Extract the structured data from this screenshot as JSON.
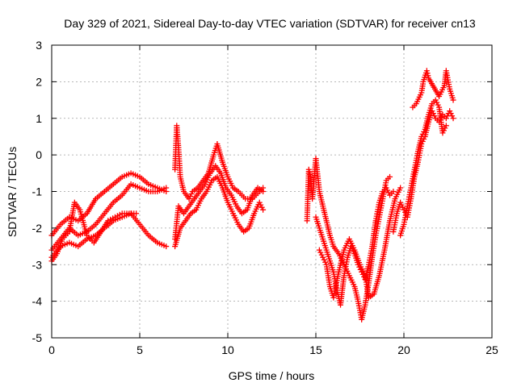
{
  "chart_data": {
    "type": "scatter",
    "title": "Day 329 of 2021, Sidereal Day-to-day VTEC variation (SDTVAR) for receiver cn13",
    "xlabel": "GPS time / hours",
    "ylabel": "SDTVAR / TECUs",
    "xlim": [
      0,
      25
    ],
    "ylim": [
      -5,
      3
    ],
    "xticks": [
      "0",
      "5",
      "10",
      "15",
      "20",
      "25"
    ],
    "yticks": [
      "-5",
      "-4",
      "-3",
      "-2",
      "-1",
      "0",
      "1",
      "2",
      "3"
    ],
    "grid": true,
    "marker": "plus",
    "color": "#ff0000",
    "series": [
      {
        "points": [
          [
            0,
            -2.2
          ],
          [
            0.5,
            -1.9
          ],
          [
            1.0,
            -1.7
          ],
          [
            1.5,
            -1.8
          ],
          [
            2.0,
            -1.6
          ],
          [
            2.5,
            -1.2
          ],
          [
            3.0,
            -1.0
          ],
          [
            3.5,
            -0.8
          ],
          [
            4.0,
            -0.6
          ],
          [
            4.5,
            -0.5
          ],
          [
            5.0,
            -0.6
          ],
          [
            5.5,
            -0.8
          ],
          [
            6.0,
            -0.9
          ],
          [
            6.5,
            -1.0
          ]
        ]
      },
      {
        "points": [
          [
            0,
            -2.6
          ],
          [
            0.5,
            -2.3
          ],
          [
            1.0,
            -2.0
          ],
          [
            1.5,
            -2.2
          ],
          [
            2.0,
            -2.1
          ],
          [
            2.5,
            -1.9
          ],
          [
            3.0,
            -1.6
          ],
          [
            3.5,
            -1.3
          ],
          [
            4.0,
            -1.1
          ],
          [
            4.5,
            -0.8
          ],
          [
            5.0,
            -0.9
          ],
          [
            5.5,
            -1.0
          ],
          [
            6.0,
            -1.0
          ],
          [
            6.5,
            -0.9
          ]
        ]
      },
      {
        "points": [
          [
            0,
            -2.8
          ],
          [
            0.5,
            -2.5
          ],
          [
            1.0,
            -2.4
          ],
          [
            1.5,
            -2.5
          ],
          [
            2.0,
            -2.3
          ],
          [
            2.5,
            -2.2
          ],
          [
            3.0,
            -2.0
          ],
          [
            3.5,
            -1.8
          ],
          [
            4.0,
            -1.7
          ],
          [
            4.5,
            -1.6
          ],
          [
            5.0,
            -1.9
          ],
          [
            5.5,
            -2.2
          ],
          [
            6.0,
            -2.4
          ],
          [
            6.5,
            -2.5
          ]
        ]
      },
      {
        "points": [
          [
            0,
            -2.9
          ],
          [
            0.3,
            -2.7
          ],
          [
            0.6,
            -2.3
          ],
          [
            1.0,
            -2.1
          ],
          [
            1.3,
            -1.3
          ],
          [
            1.6,
            -1.5
          ],
          [
            2.0,
            -2.2
          ],
          [
            2.4,
            -2.4
          ],
          [
            2.8,
            -2.1
          ],
          [
            3.2,
            -1.8
          ],
          [
            3.6,
            -1.7
          ],
          [
            4.0,
            -1.6
          ],
          [
            4.4,
            -1.6
          ],
          [
            4.8,
            -1.6
          ]
        ]
      },
      {
        "points": [
          [
            7.0,
            -0.4
          ],
          [
            7.1,
            0.8
          ],
          [
            7.2,
            0.2
          ],
          [
            7.3,
            -0.6
          ],
          [
            7.5,
            -1.0
          ],
          [
            7.8,
            -1.2
          ],
          [
            8.0,
            -1.0
          ],
          [
            8.3,
            -0.9
          ],
          [
            8.6,
            -0.7
          ],
          [
            8.9,
            -0.5
          ],
          [
            9.2,
            0.0
          ],
          [
            9.4,
            0.3
          ],
          [
            9.7,
            -0.2
          ],
          [
            10.0,
            -0.6
          ],
          [
            10.3,
            -0.9
          ],
          [
            10.6,
            -1.0
          ],
          [
            11.0,
            -1.2
          ],
          [
            11.4,
            -1.2
          ],
          [
            11.8,
            -1.0
          ],
          [
            12.0,
            -0.9
          ]
        ]
      },
      {
        "points": [
          [
            7.0,
            -2.3
          ],
          [
            7.2,
            -1.4
          ],
          [
            7.5,
            -1.6
          ],
          [
            7.8,
            -1.4
          ],
          [
            8.1,
            -1.2
          ],
          [
            8.4,
            -1.0
          ],
          [
            8.7,
            -0.8
          ],
          [
            9.0,
            -0.5
          ],
          [
            9.3,
            -0.3
          ],
          [
            9.6,
            -0.5
          ],
          [
            9.9,
            -0.9
          ],
          [
            10.2,
            -1.1
          ],
          [
            10.5,
            -1.4
          ],
          [
            10.8,
            -1.6
          ],
          [
            11.1,
            -1.5
          ],
          [
            11.4,
            -1.1
          ],
          [
            11.7,
            -0.9
          ],
          [
            12.0,
            -1.0
          ]
        ]
      },
      {
        "points": [
          [
            7.0,
            -2.5
          ],
          [
            7.3,
            -2.0
          ],
          [
            7.6,
            -1.8
          ],
          [
            7.9,
            -1.6
          ],
          [
            8.2,
            -1.5
          ],
          [
            8.5,
            -1.2
          ],
          [
            8.8,
            -1.0
          ],
          [
            9.1,
            -0.7
          ],
          [
            9.4,
            -0.6
          ],
          [
            9.7,
            -0.9
          ],
          [
            10.0,
            -1.3
          ],
          [
            10.3,
            -1.6
          ],
          [
            10.6,
            -1.9
          ],
          [
            10.9,
            -2.1
          ],
          [
            11.2,
            -2.0
          ],
          [
            11.5,
            -1.6
          ],
          [
            11.8,
            -1.3
          ],
          [
            12.0,
            -1.5
          ]
        ]
      },
      {
        "points": [
          [
            14.5,
            -1.8
          ],
          [
            14.6,
            -0.4
          ],
          [
            14.7,
            -0.6
          ],
          [
            14.8,
            -1.2
          ],
          [
            15.0,
            -0.1
          ],
          [
            15.2,
            -1.0
          ],
          [
            15.4,
            -1.4
          ],
          [
            15.6,
            -1.8
          ],
          [
            15.8,
            -2.2
          ],
          [
            16.0,
            -2.5
          ],
          [
            16.3,
            -2.7
          ],
          [
            16.6,
            -3.0
          ],
          [
            16.9,
            -3.3
          ],
          [
            17.2,
            -3.6
          ],
          [
            17.4,
            -4.0
          ],
          [
            17.6,
            -4.5
          ],
          [
            17.8,
            -4.1
          ],
          [
            18.0,
            -3.5
          ],
          [
            18.2,
            -2.8
          ],
          [
            18.4,
            -2.2
          ],
          [
            18.6,
            -1.7
          ],
          [
            18.8,
            -1.2
          ],
          [
            19.0,
            -0.7
          ],
          [
            19.2,
            -0.6
          ]
        ]
      },
      {
        "points": [
          [
            15.0,
            -1.7
          ],
          [
            15.2,
            -2.0
          ],
          [
            15.4,
            -2.3
          ],
          [
            15.6,
            -2.6
          ],
          [
            15.8,
            -2.9
          ],
          [
            16.0,
            -3.2
          ],
          [
            16.2,
            -3.7
          ],
          [
            16.4,
            -4.1
          ],
          [
            16.6,
            -3.3
          ],
          [
            16.8,
            -2.8
          ],
          [
            17.0,
            -2.5
          ],
          [
            17.2,
            -2.7
          ],
          [
            17.4,
            -3.0
          ],
          [
            17.6,
            -3.2
          ],
          [
            17.8,
            -3.4
          ],
          [
            18.0,
            -3.0
          ],
          [
            18.2,
            -2.5
          ],
          [
            18.4,
            -1.8
          ],
          [
            18.6,
            -1.3
          ],
          [
            18.8,
            -1.0
          ],
          [
            19.0,
            -0.9
          ],
          [
            19.2,
            -1.1
          ],
          [
            19.4,
            -1.0
          ]
        ]
      },
      {
        "points": [
          [
            15.2,
            -2.6
          ],
          [
            15.4,
            -2.8
          ],
          [
            15.6,
            -3.0
          ],
          [
            15.8,
            -3.6
          ],
          [
            16.0,
            -3.9
          ],
          [
            16.3,
            -3.2
          ],
          [
            16.6,
            -2.6
          ],
          [
            16.9,
            -2.3
          ],
          [
            17.2,
            -2.6
          ],
          [
            17.5,
            -3.0
          ],
          [
            17.8,
            -3.3
          ],
          [
            18.0,
            -3.9
          ],
          [
            18.3,
            -3.8
          ],
          [
            18.6,
            -3.3
          ],
          [
            18.9,
            -2.6
          ],
          [
            19.2,
            -1.8
          ],
          [
            19.5,
            -1.2
          ],
          [
            19.8,
            -0.9
          ]
        ]
      },
      {
        "points": [
          [
            19.4,
            -2.1
          ],
          [
            19.6,
            -1.6
          ],
          [
            19.8,
            -1.3
          ],
          [
            20.0,
            -1.5
          ],
          [
            20.2,
            -1.7
          ],
          [
            20.4,
            -1.2
          ],
          [
            20.6,
            -0.6
          ],
          [
            20.8,
            -0.2
          ],
          [
            21.0,
            0.3
          ],
          [
            21.2,
            0.5
          ],
          [
            21.4,
            0.9
          ],
          [
            21.6,
            1.2
          ],
          [
            21.8,
            1.0
          ],
          [
            22.0,
            0.9
          ],
          [
            22.2,
            1.1
          ],
          [
            22.4,
            1.0
          ],
          [
            22.6,
            1.2
          ],
          [
            22.8,
            1.0
          ]
        ]
      },
      {
        "points": [
          [
            19.8,
            -2.2
          ],
          [
            20.0,
            -1.9
          ],
          [
            20.2,
            -1.4
          ],
          [
            20.4,
            -0.9
          ],
          [
            20.6,
            -0.4
          ],
          [
            20.8,
            0.1
          ],
          [
            21.0,
            0.5
          ],
          [
            21.2,
            0.7
          ],
          [
            21.4,
            1.1
          ],
          [
            21.6,
            1.4
          ],
          [
            21.8,
            1.5
          ],
          [
            22.0,
            1.3
          ],
          [
            22.2,
            0.6
          ],
          [
            22.4,
            0.8
          ]
        ]
      },
      {
        "points": [
          [
            20.5,
            1.3
          ],
          [
            20.7,
            1.4
          ],
          [
            21.0,
            1.7
          ],
          [
            21.1,
            2.0
          ],
          [
            21.3,
            2.3
          ],
          [
            21.4,
            2.1
          ],
          [
            22.0,
            1.6
          ],
          [
            22.3,
            1.9
          ],
          [
            22.4,
            2.3
          ],
          [
            22.6,
            1.8
          ],
          [
            22.8,
            1.5
          ]
        ]
      }
    ]
  }
}
